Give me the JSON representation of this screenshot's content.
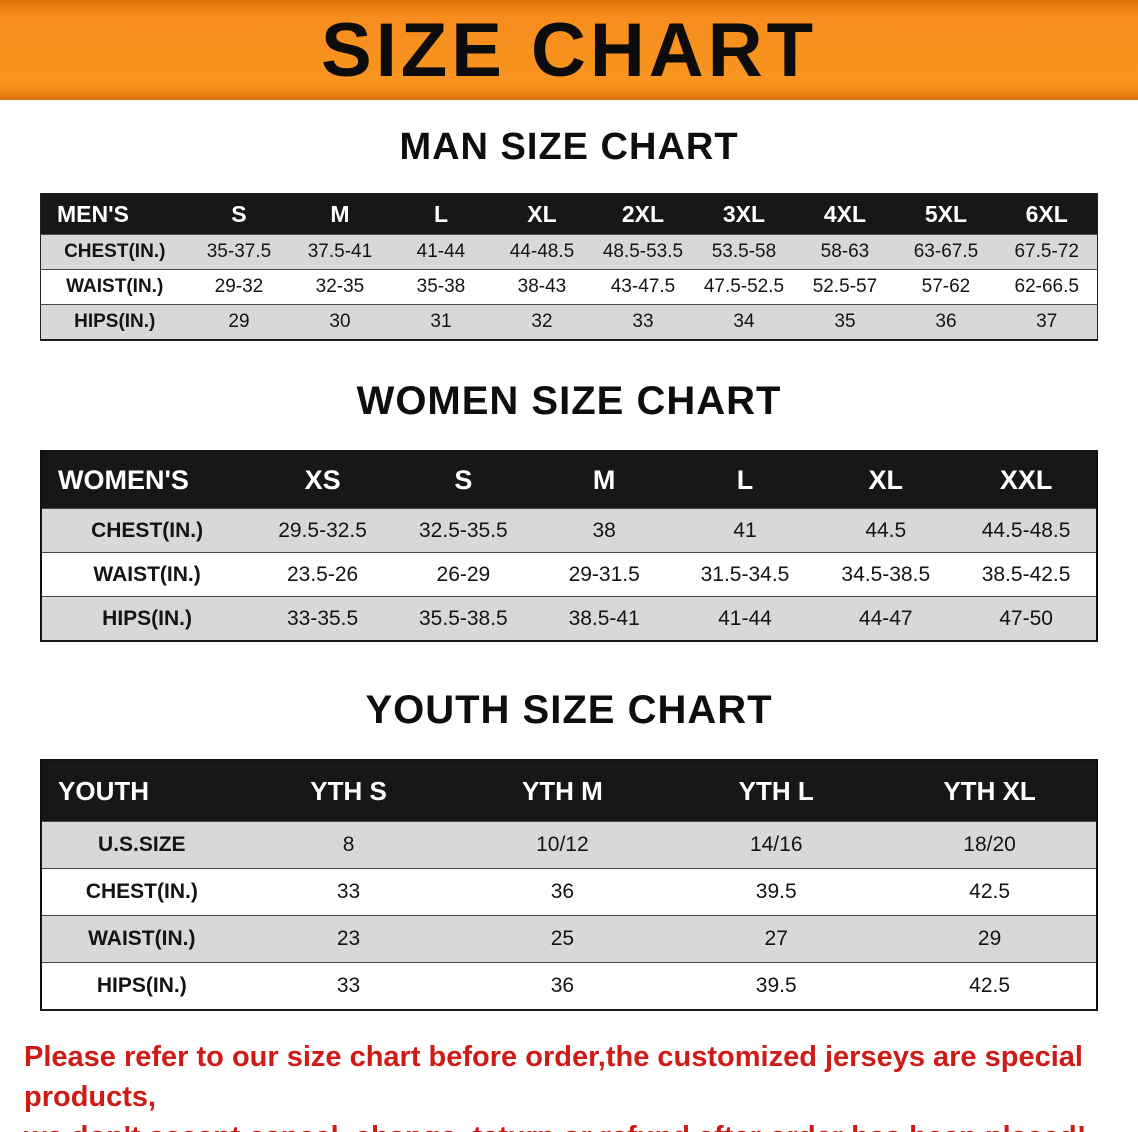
{
  "banner": {
    "title": "SIZE CHART",
    "bg_color": "#f8951f",
    "text_color": "#0c0c0c"
  },
  "colors": {
    "header_bar": "#171717",
    "stripe_gray": "#d8d8d8",
    "notice_red": "#ce1b15"
  },
  "sections": [
    {
      "id": "men",
      "title": "MAN SIZE CHART",
      "header_label": "MEN'S",
      "sizes": [
        "S",
        "M",
        "L",
        "XL",
        "2XL",
        "3XL",
        "4XL",
        "5XL",
        "6XL"
      ],
      "rows": [
        {
          "label": "CHEST(IN.)",
          "values": [
            "35-37.5",
            "37.5-41",
            "41-44",
            "44-48.5",
            "48.5-53.5",
            "53.5-58",
            "58-63",
            "63-67.5",
            "67.5-72"
          ]
        },
        {
          "label": "WAIST(IN.)",
          "values": [
            "29-32",
            "32-35",
            "35-38",
            "38-43",
            "43-47.5",
            "47.5-52.5",
            "52.5-57",
            "57-62",
            "62-66.5"
          ]
        },
        {
          "label": "HIPS(IN.)",
          "values": [
            "29",
            "30",
            "31",
            "32",
            "33",
            "34",
            "35",
            "36",
            "37"
          ]
        }
      ]
    },
    {
      "id": "women",
      "title": "WOMEN SIZE CHART",
      "header_label": "WOMEN'S",
      "sizes": [
        "XS",
        "S",
        "M",
        "L",
        "XL",
        "XXL"
      ],
      "rows": [
        {
          "label": "CHEST(IN.)",
          "values": [
            "29.5-32.5",
            "32.5-35.5",
            "38",
            "41",
            "44.5",
            "44.5-48.5"
          ]
        },
        {
          "label": "WAIST(IN.)",
          "values": [
            "23.5-26",
            "26-29",
            "29-31.5",
            "31.5-34.5",
            "34.5-38.5",
            "38.5-42.5"
          ]
        },
        {
          "label": "HIPS(IN.)",
          "values": [
            "33-35.5",
            "35.5-38.5",
            "38.5-41",
            "41-44",
            "44-47",
            "47-50"
          ]
        }
      ]
    },
    {
      "id": "youth",
      "title": "YOUTH SIZE CHART",
      "header_label": "YOUTH",
      "sizes": [
        "YTH S",
        "YTH M",
        "YTH L",
        "YTH XL"
      ],
      "rows": [
        {
          "label": "U.S.SIZE",
          "values": [
            "8",
            "10/12",
            "14/16",
            "18/20"
          ]
        },
        {
          "label": "CHEST(IN.)",
          "values": [
            "33",
            "36",
            "39.5",
            "42.5"
          ]
        },
        {
          "label": "WAIST(IN.)",
          "values": [
            "23",
            "25",
            "27",
            "29"
          ]
        },
        {
          "label": "HIPS(IN.)",
          "values": [
            "33",
            "36",
            "39.5",
            "42.5"
          ]
        }
      ]
    }
  ],
  "footer": {
    "lines": [
      "Please refer to our size chart before order,the customized jerseys are special products,",
      "we don't accept cancel, change, teturn or refund after order has been placed!"
    ]
  }
}
